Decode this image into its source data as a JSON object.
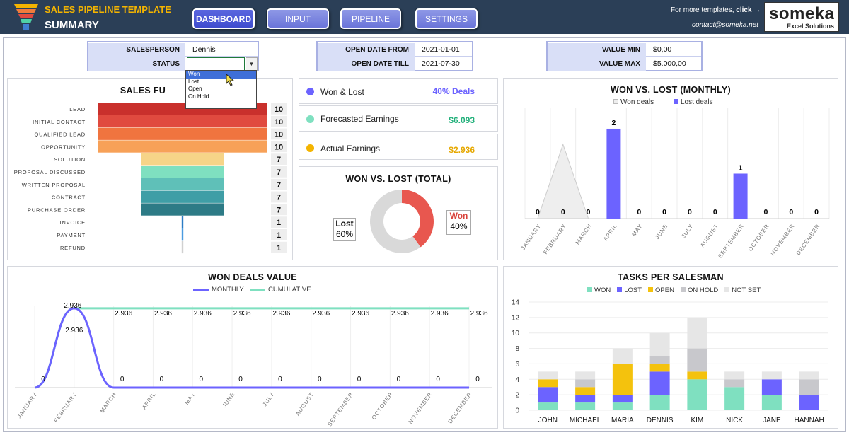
{
  "header": {
    "template_title": "SALES PIPELINE TEMPLATE",
    "page_title": "SUMMARY",
    "nav": [
      "DASHBOARD",
      "INPUT",
      "PIPELINE",
      "SETTINGS"
    ],
    "more_text": "For more templates, ",
    "more_click": "click →",
    "contact": "contact@someka.net",
    "brand_name": "someka",
    "brand_sub": "Excel Solutions"
  },
  "filters": {
    "salesperson_label": "SALESPERSON",
    "salesperson_value": "Dennis",
    "status_label": "STATUS",
    "status_value": "",
    "status_options": [
      "Won",
      "Lost",
      "Open",
      "On Hold"
    ],
    "open_from_label": "OPEN DATE FROM",
    "open_from_value": "2021-01-01",
    "open_till_label": "OPEN DATE TILL",
    "open_till_value": "2021-07-30",
    "value_min_label": "VALUE MIN",
    "value_min_value": "$0,00",
    "value_max_label": "VALUE MAX",
    "value_max_value": "$5.000,00"
  },
  "kpis": [
    {
      "label": "Won & Lost",
      "value": "40% Deals",
      "color": "#6c63ff"
    },
    {
      "label": "Forecasted Earnings",
      "value": "$6.093",
      "color": "#4fd1a5"
    },
    {
      "label": "Actual Earnings",
      "value": "$2.936",
      "color": "#f4b400"
    }
  ],
  "funnel": {
    "title": "SALES FU",
    "stages": [
      {
        "label": "LEAD",
        "value": 10,
        "color": "#c9302c"
      },
      {
        "label": "INITIAL CONTACT",
        "value": 10,
        "color": "#e04a3f"
      },
      {
        "label": "QUALIFIED LEAD",
        "value": 10,
        "color": "#f0743f"
      },
      {
        "label": "OPPORTUNITY",
        "value": 10,
        "color": "#f7a158"
      },
      {
        "label": "SOLUTION",
        "value": 7,
        "color": "#f6d488"
      },
      {
        "label": "PROPOSAL DISCUSSED",
        "value": 7,
        "color": "#7fe0c0"
      },
      {
        "label": "WRITTEN PROPOSAL",
        "value": 7,
        "color": "#5fc0b8"
      },
      {
        "label": "CONTRACT",
        "value": 7,
        "color": "#3f9ea6"
      },
      {
        "label": "PURCHASE ORDER",
        "value": 7,
        "color": "#2d7b86"
      },
      {
        "label": "INVOICE",
        "value": 1,
        "color": "#2c7cc4"
      },
      {
        "label": "PAYMENT",
        "value": 1,
        "color": "#4b9be0"
      },
      {
        "label": "REFUND",
        "value": 1,
        "color": "#d0d0d0"
      }
    ]
  },
  "won_lost_total": {
    "title": "WON VS. LOST (TOTAL)",
    "lost_label": "Lost",
    "lost_pct": "60%",
    "lost_value": 60,
    "won_label": "Won",
    "won_pct": "40%",
    "won_value": 40,
    "lost_color": "#d9d9d9",
    "won_color": "#e8574f"
  },
  "chart_data": [
    {
      "type": "bar",
      "title": "WON VS. LOST (MONTHLY)",
      "categories": [
        "JANUARY",
        "FEBRUARY",
        "MARCH",
        "APRIL",
        "MAY",
        "JUNE",
        "JULY",
        "AUGUST",
        "SEPTEMBER",
        "OCTOBER",
        "NOVEMBER",
        "DECEMBER"
      ],
      "series": [
        {
          "name": "Won deals",
          "type": "area",
          "color": "#eeeeee",
          "values": [
            0,
            1,
            0,
            0,
            0,
            0,
            0,
            0,
            0,
            0,
            0,
            0
          ]
        },
        {
          "name": "Lost deals",
          "type": "bar",
          "color": "#6c63ff",
          "values": [
            0,
            0,
            0,
            2,
            0,
            0,
            0,
            0,
            1,
            0,
            0,
            0
          ]
        }
      ],
      "data_labels": [
        "0",
        "0",
        "0",
        "2",
        "0",
        "0",
        "0",
        "0",
        "1",
        "0",
        "0",
        "0"
      ],
      "legend": "top",
      "ylim": [
        0,
        2.4
      ]
    },
    {
      "type": "line",
      "title": "WON DEALS VALUE",
      "categories": [
        "JANUARY",
        "FEBRUARY",
        "MARCH",
        "APRIL",
        "MAY",
        "JUNE",
        "JULY",
        "AUGUST",
        "SEPTEMBER",
        "OCTOBER",
        "NOVEMBER",
        "DECEMBER"
      ],
      "series": [
        {
          "name": "MONTHLY",
          "color": "#6c63ff",
          "values": [
            0,
            2936,
            0,
            0,
            0,
            0,
            0,
            0,
            0,
            0,
            0,
            0
          ]
        },
        {
          "name": "CUMULATIVE",
          "color": "#7fe0c0",
          "values": [
            0,
            2936,
            2936,
            2936,
            2936,
            2936,
            2936,
            2936,
            2936,
            2936,
            2936,
            2936
          ]
        }
      ],
      "cumulative_labels": [
        "0",
        "2.936",
        "2.936",
        "2.936",
        "2.936",
        "2.936",
        "2.936",
        "2.936",
        "2.936",
        "2.936",
        "2.936",
        "2.936"
      ],
      "monthly_labels": [
        "0",
        "2.936",
        "0",
        "0",
        "0",
        "0",
        "0",
        "0",
        "0",
        "0",
        "0",
        "0"
      ],
      "legend": "top",
      "ylim": [
        0,
        3300
      ]
    },
    {
      "type": "bar",
      "stacked": true,
      "title": "TASKS PER SALESMAN",
      "categories": [
        "JOHN",
        "MICHAEL",
        "MARIA",
        "DENNIS",
        "KIM",
        "NICK",
        "JANE",
        "HANNAH"
      ],
      "series": [
        {
          "name": "WON",
          "color": "#7fe0c0",
          "values": [
            1,
            1,
            1,
            2,
            4,
            3,
            2,
            0
          ]
        },
        {
          "name": "LOST",
          "color": "#6c63ff",
          "values": [
            2,
            1,
            1,
            3,
            0,
            0,
            2,
            2
          ]
        },
        {
          "name": "OPEN",
          "color": "#f4c20d",
          "values": [
            1,
            1,
            4,
            1,
            1,
            0,
            0,
            0
          ]
        },
        {
          "name": "ON HOLD",
          "color": "#c8c8cc",
          "values": [
            0,
            1,
            0,
            1,
            3,
            1,
            0,
            2
          ]
        },
        {
          "name": "NOT SET",
          "color": "#e6e6e6",
          "values": [
            1,
            1,
            2,
            3,
            4,
            1,
            1,
            1
          ]
        }
      ],
      "yticks": [
        "0",
        "2",
        "4",
        "6",
        "8",
        "10",
        "12",
        "14"
      ],
      "ylim": [
        0,
        14
      ],
      "legend": "top"
    }
  ]
}
